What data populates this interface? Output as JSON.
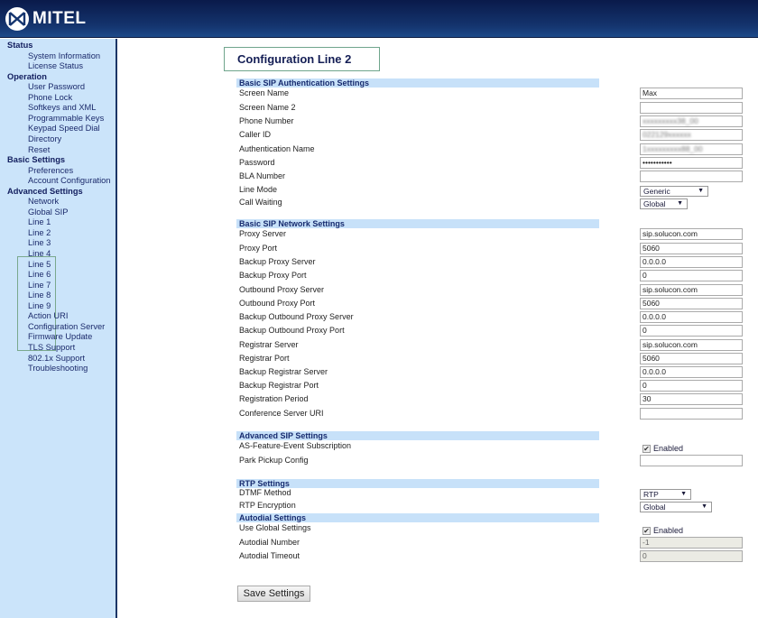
{
  "brand": {
    "name": "MITEL"
  },
  "sidebar": [
    {
      "label": "Status",
      "heading": true
    },
    {
      "label": "System Information"
    },
    {
      "label": "License Status"
    },
    {
      "label": "Operation",
      "heading": true
    },
    {
      "label": "User Password"
    },
    {
      "label": "Phone Lock"
    },
    {
      "label": "Softkeys and XML"
    },
    {
      "label": "Programmable Keys"
    },
    {
      "label": "Keypad Speed Dial"
    },
    {
      "label": "Directory"
    },
    {
      "label": "Reset"
    },
    {
      "label": "Basic Settings",
      "heading": true
    },
    {
      "label": "Preferences"
    },
    {
      "label": "Account Configuration"
    },
    {
      "label": "Advanced Settings",
      "heading": true
    },
    {
      "label": "Network"
    },
    {
      "label": "Global SIP"
    },
    {
      "label": "Line 1"
    },
    {
      "label": "Line 2"
    },
    {
      "label": "Line 3"
    },
    {
      "label": "Line 4"
    },
    {
      "label": "Line 5"
    },
    {
      "label": "Line 6"
    },
    {
      "label": "Line 7"
    },
    {
      "label": "Line 8"
    },
    {
      "label": "Line 9"
    },
    {
      "label": "Action URI"
    },
    {
      "label": "Configuration Server"
    },
    {
      "label": "Firmware Update"
    },
    {
      "label": "TLS Support"
    },
    {
      "label": "802.1x Support"
    },
    {
      "label": "Troubleshooting"
    }
  ],
  "page_title": "Configuration Line 2",
  "sections": [
    {
      "title": "Basic SIP Authentication Settings",
      "rows": [
        {
          "label": "Screen Name",
          "type": "text",
          "value": "Max"
        },
        {
          "label": "Screen Name 2",
          "type": "text",
          "value": ""
        },
        {
          "label": "Phone Number",
          "type": "text",
          "value": "xxxxxxxxx38_00",
          "blurred": true
        },
        {
          "label": "Caller ID",
          "type": "text",
          "value": "022129xxxxxx",
          "blurred": true
        },
        {
          "label": "Authentication Name",
          "type": "text",
          "value": "1xxxxxxxxx88_00",
          "blurred": true
        },
        {
          "label": "Password",
          "type": "password",
          "value": "•••••••••••"
        },
        {
          "label": "BLA Number",
          "type": "text",
          "value": ""
        },
        {
          "label": "Line Mode",
          "type": "select",
          "value": "Generic"
        },
        {
          "label": "Call Waiting",
          "type": "select",
          "value": "Global"
        }
      ]
    },
    {
      "title": "Basic SIP Network Settings",
      "rows": [
        {
          "label": "Proxy Server",
          "type": "text",
          "value": "sip.solucon.com"
        },
        {
          "label": "Proxy Port",
          "type": "text",
          "value": "5060"
        },
        {
          "label": "Backup Proxy Server",
          "type": "text",
          "value": "0.0.0.0"
        },
        {
          "label": "Backup Proxy Port",
          "type": "text",
          "value": "0"
        },
        {
          "label": "Outbound Proxy Server",
          "type": "text",
          "value": "sip.solucon.com"
        },
        {
          "label": "Outbound Proxy Port",
          "type": "text",
          "value": "5060"
        },
        {
          "label": "Backup Outbound Proxy Server",
          "type": "text",
          "value": "0.0.0.0"
        },
        {
          "label": "Backup Outbound Proxy Port",
          "type": "text",
          "value": "0"
        },
        {
          "label": "Registrar Server",
          "type": "text",
          "value": "sip.solucon.com"
        },
        {
          "label": "Registrar Port",
          "type": "text",
          "value": "5060"
        },
        {
          "label": "Backup Registrar Server",
          "type": "text",
          "value": "0.0.0.0"
        },
        {
          "label": "Backup Registrar Port",
          "type": "text",
          "value": "0"
        },
        {
          "label": "Registration Period",
          "type": "text",
          "value": "30"
        },
        {
          "label": "Conference Server URI",
          "type": "text",
          "value": ""
        }
      ]
    },
    {
      "title": "Advanced SIP Settings",
      "rows": [
        {
          "label": "AS-Feature-Event Subscription",
          "type": "checkbox",
          "value": "Enabled",
          "checked": true
        },
        {
          "label": "Park Pickup Config",
          "type": "text",
          "value": ""
        }
      ]
    },
    {
      "title": "RTP Settings",
      "rows": [
        {
          "label": "DTMF Method",
          "type": "select",
          "value": "RTP"
        },
        {
          "label": "RTP Encryption",
          "type": "select",
          "value": "Global"
        }
      ]
    },
    {
      "title": "Autodial Settings",
      "rows": [
        {
          "label": "Use Global Settings",
          "type": "checkbox",
          "value": "Enabled",
          "checked": true
        },
        {
          "label": "Autodial Number",
          "type": "text",
          "value": "-1",
          "disabled": true
        },
        {
          "label": "Autodial Timeout",
          "type": "text",
          "value": "0",
          "disabled": true
        }
      ]
    }
  ],
  "save_label": "Save Settings",
  "colors": {
    "header": "#14346e",
    "sidebar": "#cbe4fa",
    "section_band": "#c7e1f9",
    "highlight_border": "#6fa58c"
  }
}
